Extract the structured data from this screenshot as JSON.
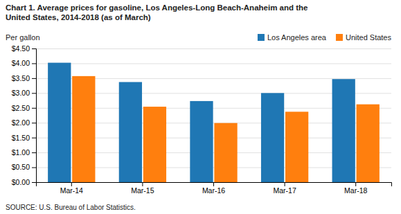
{
  "chart_data": {
    "type": "bar",
    "title": "Chart 1. Average prices for gasoline, Los Angeles-Long Beach-Anaheim and the\nUnited States, 2014-2018  (as of March)",
    "y_label": "Per gallon",
    "source": "SOURCE: U.S. Bureau of Labor Statistics.",
    "categories": [
      "Mar-14",
      "Mar-15",
      "Mar-16",
      "Mar-17",
      "Mar-18"
    ],
    "series": [
      {
        "name": "Los Angeles area",
        "values": [
          4.02,
          3.37,
          2.73,
          3.0,
          3.47
        ]
      },
      {
        "name": "United States",
        "values": [
          3.57,
          2.54,
          1.99,
          2.37,
          2.62
        ]
      }
    ],
    "ylim": [
      0.0,
      4.5
    ],
    "yticks": [
      {
        "value": 0.0,
        "label": "$0.00"
      },
      {
        "value": 0.5,
        "label": "$0.50"
      },
      {
        "value": 1.0,
        "label": "$1.00"
      },
      {
        "value": 1.5,
        "label": "$1.50"
      },
      {
        "value": 2.0,
        "label": "$2.00"
      },
      {
        "value": 2.5,
        "label": "$2.50"
      },
      {
        "value": 3.0,
        "label": "$3.00"
      },
      {
        "value": 3.5,
        "label": "$3.50"
      },
      {
        "value": 4.0,
        "label": "$4.00"
      },
      {
        "value": 4.5,
        "label": "$4.50"
      }
    ],
    "grid": true,
    "legend": "top-right"
  }
}
